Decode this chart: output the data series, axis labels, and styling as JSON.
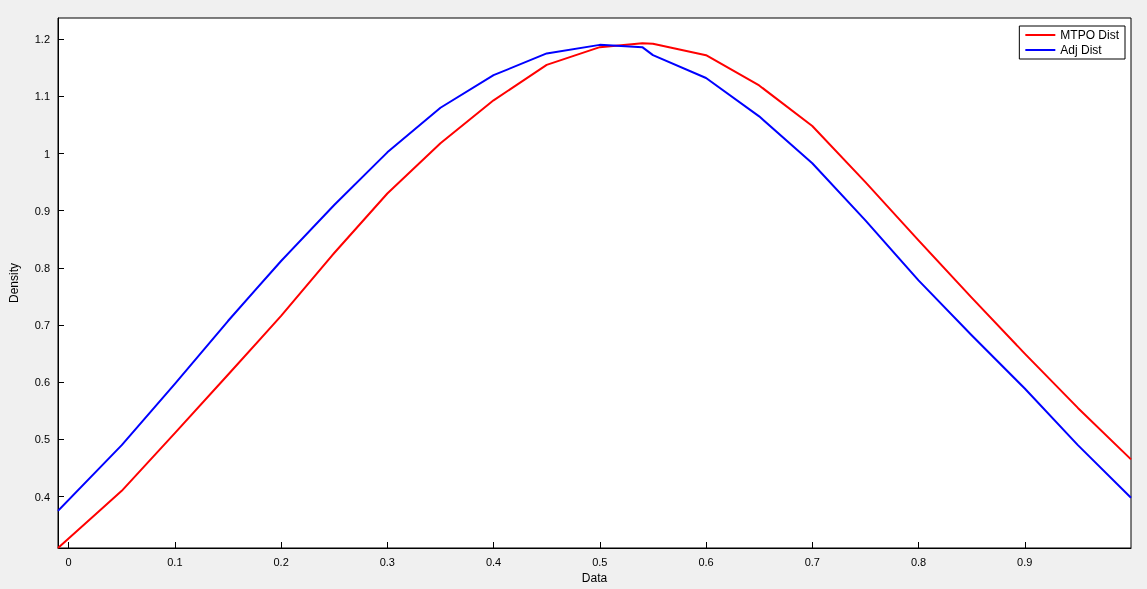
{
  "chart_data": {
    "type": "line",
    "xlabel": "Data",
    "ylabel": "Density",
    "xlim": [
      -0.01,
      1.0
    ],
    "xticks": [
      0,
      0.1,
      0.2,
      0.3,
      0.4,
      0.5,
      0.6,
      0.7,
      0.8,
      0.9
    ],
    "ylim": [
      0.31,
      1.237
    ],
    "yticks": [
      0.4,
      0.5,
      0.6,
      0.7,
      0.8,
      0.9,
      1,
      1.1,
      1.2
    ],
    "x": [
      -0.01,
      0.05,
      0.1,
      0.15,
      0.2,
      0.25,
      0.3,
      0.35,
      0.4,
      0.45,
      0.5,
      0.54,
      0.55,
      0.6,
      0.65,
      0.7,
      0.75,
      0.8,
      0.85,
      0.9,
      0.95,
      1.0
    ],
    "series": [
      {
        "name": "MTPO Dist",
        "color": "#ff0000",
        "values": [
          0.31,
          0.41,
          0.511,
          0.613,
          0.716,
          0.826,
          0.93,
          1.018,
          1.093,
          1.155,
          1.186,
          1.193,
          1.192,
          1.172,
          1.119,
          1.048,
          0.95,
          0.848,
          0.748,
          0.65,
          0.555,
          0.465
        ]
      },
      {
        "name": "Adj Dist",
        "color": "#0000ff",
        "values": [
          0.375,
          0.49,
          0.597,
          0.707,
          0.812,
          0.91,
          1.002,
          1.08,
          1.137,
          1.175,
          1.19,
          1.186,
          1.172,
          1.132,
          1.065,
          0.983,
          0.883,
          0.778,
          0.682,
          0.589,
          0.49,
          0.398
        ]
      }
    ],
    "grid": false,
    "legend": "top right",
    "marker": "none",
    "line_style": "solid"
  }
}
